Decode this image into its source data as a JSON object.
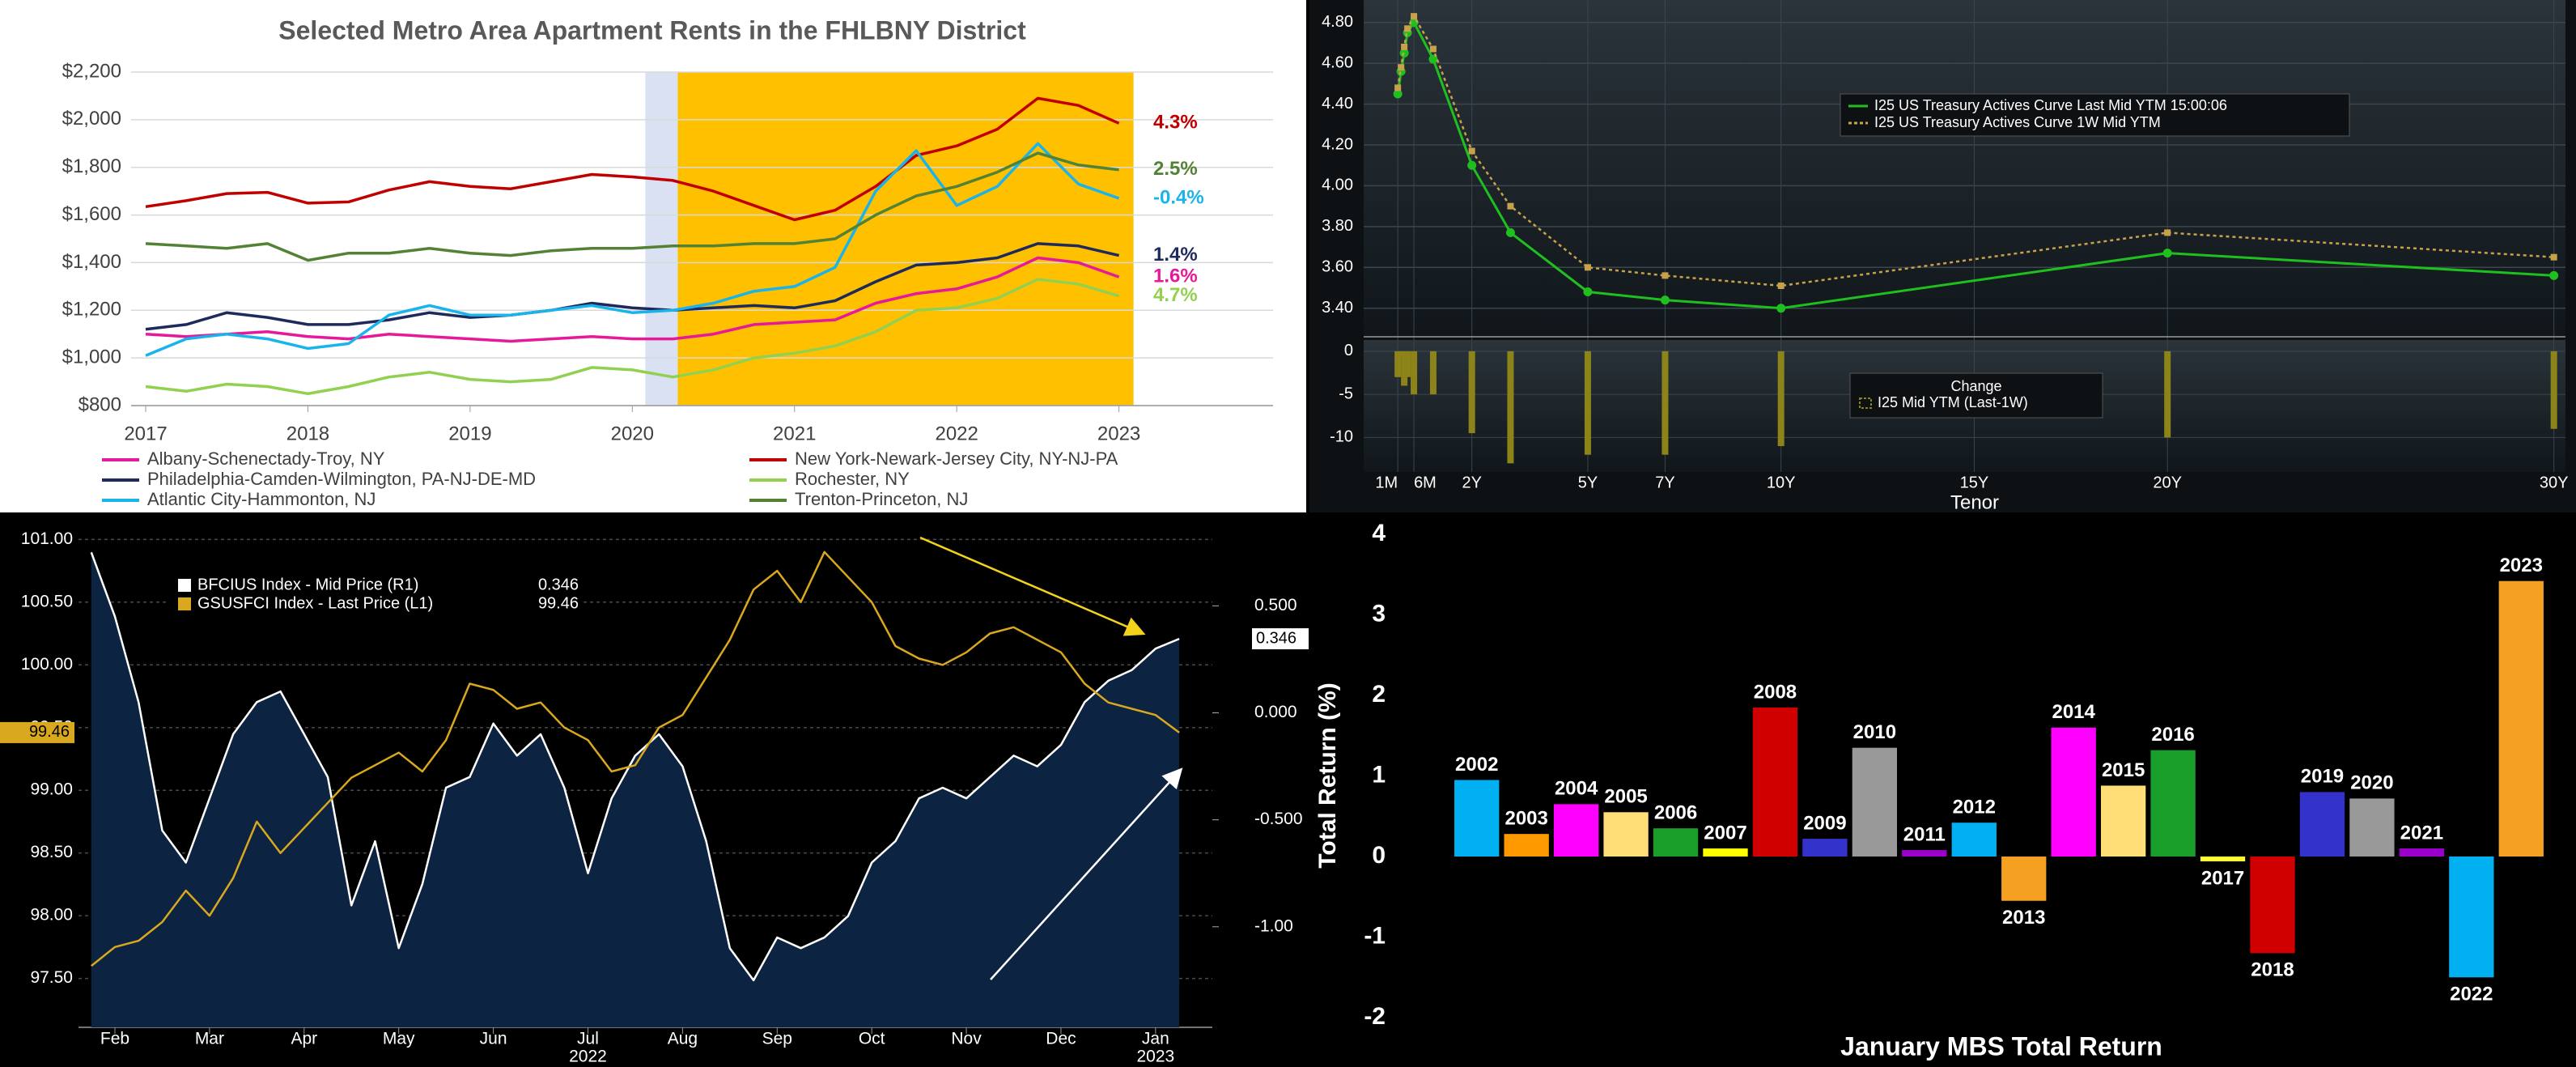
{
  "chart_data": [
    {
      "type": "line",
      "title": "Selected Metro Area Apartment Rents in the FHLBNY District",
      "x": [
        2017,
        2017.25,
        2017.5,
        2017.75,
        2018,
        2018.25,
        2018.5,
        2018.75,
        2019,
        2019.25,
        2019.5,
        2019.75,
        2020,
        2020.25,
        2020.5,
        2020.75,
        2021,
        2021.25,
        2021.5,
        2021.75,
        2022,
        2022.25,
        2022.5,
        2022.75,
        2023
      ],
      "xlim": [
        2016.91,
        2023.95
      ],
      "xticks": [
        2017,
        2018,
        2019,
        2020,
        2021,
        2022,
        2023
      ],
      "ylim": [
        800,
        2200
      ],
      "yticks": [
        {
          "value": 800,
          "label": "$800"
        },
        {
          "value": 1000,
          "label": "$1,000"
        },
        {
          "value": 1200,
          "label": "$1,200"
        },
        {
          "value": 1400,
          "label": "$1,400"
        },
        {
          "value": 1600,
          "label": "$1,600"
        },
        {
          "value": 1800,
          "label": "$1,800"
        },
        {
          "value": 2000,
          "label": "$2,000"
        },
        {
          "value": 2200,
          "label": "$2,200"
        }
      ],
      "grid": true,
      "shaded_regions": [
        {
          "x0": 2020.08,
          "x1": 2020.28,
          "color": "#d9e1f2"
        },
        {
          "x0": 2020.28,
          "x1": 2023.09,
          "color": "#ffc000"
        }
      ],
      "series": [
        {
          "name": "Albany-Schenectady-Troy, NY",
          "color": "#e6199b",
          "annotation": "1.6%",
          "values": [
            1100,
            1090,
            1100,
            1110,
            1090,
            1080,
            1100,
            1090,
            1080,
            1070,
            1080,
            1090,
            1080,
            1080,
            1100,
            1140,
            1150,
            1160,
            1230,
            1270,
            1290,
            1340,
            1420,
            1400,
            1340
          ]
        },
        {
          "name": "New York-Newark-Jersey City, NY-NJ-PA",
          "color": "#c00000",
          "annotation": "4.3%",
          "values": [
            1635,
            1660,
            1690,
            1695,
            1650,
            1655,
            1705,
            1740,
            1720,
            1710,
            1740,
            1770,
            1760,
            1745,
            1700,
            1640,
            1580,
            1620,
            1720,
            1850,
            1890,
            1960,
            2090,
            2060,
            1985
          ]
        },
        {
          "name": "Philadelphia-Camden-Wilmington, PA-NJ-DE-MD",
          "color": "#1f2a5c",
          "annotation": "1.4%",
          "values": [
            1120,
            1140,
            1190,
            1170,
            1140,
            1140,
            1160,
            1190,
            1170,
            1180,
            1200,
            1230,
            1210,
            1200,
            1210,
            1220,
            1210,
            1240,
            1320,
            1390,
            1400,
            1420,
            1480,
            1470,
            1430
          ]
        },
        {
          "name": "Rochester, NY",
          "color": "#92d050",
          "annotation": "4.7%",
          "values": [
            880,
            860,
            890,
            880,
            850,
            880,
            920,
            940,
            910,
            900,
            910,
            960,
            950,
            920,
            950,
            1000,
            1020,
            1050,
            1110,
            1200,
            1210,
            1250,
            1330,
            1310,
            1260
          ]
        },
        {
          "name": "Atlantic City-Hammonton, NJ",
          "color": "#19b4eb",
          "annotation": "-0.4%",
          "values": [
            1010,
            1080,
            1100,
            1080,
            1040,
            1060,
            1180,
            1220,
            1180,
            1180,
            1200,
            1220,
            1190,
            1200,
            1230,
            1280,
            1300,
            1380,
            1700,
            1870,
            1640,
            1720,
            1900,
            1730,
            1670
          ]
        },
        {
          "name": "Trenton-Princeton, NJ",
          "color": "#548235",
          "annotation": "2.5%",
          "values": [
            1480,
            1470,
            1460,
            1480,
            1410,
            1440,
            1440,
            1460,
            1440,
            1430,
            1450,
            1460,
            1460,
            1470,
            1470,
            1480,
            1480,
            1500,
            1600,
            1680,
            1720,
            1780,
            1860,
            1810,
            1790
          ]
        }
      ]
    },
    {
      "type": "line",
      "x": [
        0.083,
        0.167,
        0.25,
        0.333,
        0.5,
        1,
        2,
        3,
        5,
        7,
        10,
        20,
        30
      ],
      "xlim": [
        -0.8,
        30.3
      ],
      "xticks": [
        {
          "value": 0.083,
          "label": "1M"
        },
        {
          "value": 0.5,
          "label": "6M"
        },
        {
          "value": 2,
          "label": "2Y"
        },
        {
          "value": 5,
          "label": "5Y"
        },
        {
          "value": 7,
          "label": "7Y"
        },
        {
          "value": 10,
          "label": "10Y"
        },
        {
          "value": 15,
          "label": "15Y"
        },
        {
          "value": 20,
          "label": "20Y"
        },
        {
          "value": 30,
          "label": "30Y"
        }
      ],
      "xlabel": "Tenor",
      "ylim": [
        3.26,
        4.91
      ],
      "yticks": [
        {
          "value": 3.4,
          "label": "3.40"
        },
        {
          "value": 3.6,
          "label": "3.60"
        },
        {
          "value": 3.8,
          "label": "3.80"
        },
        {
          "value": 4,
          "label": "4.00"
        },
        {
          "value": 4.2,
          "label": "4.20"
        },
        {
          "value": 4.4,
          "label": "4.40"
        },
        {
          "value": 4.6,
          "label": "4.60"
        },
        {
          "value": 4.8,
          "label": "4.80"
        }
      ],
      "grid": true,
      "series": [
        {
          "name": "I25 US Treasury Actives Curve Last Mid YTM 15:00:06",
          "color": "#1fbf1f",
          "marker": "circle",
          "values": [
            4.45,
            4.56,
            4.65,
            4.75,
            4.8,
            4.62,
            4.1,
            3.77,
            3.48,
            3.44,
            3.4,
            3.67,
            3.56
          ]
        },
        {
          "name": "I25 US Treasury Actives Curve 1W Mid YTM",
          "color": "#c8a24a",
          "marker": "square",
          "dash": true,
          "values": [
            4.48,
            4.58,
            4.68,
            4.77,
            4.83,
            4.67,
            4.17,
            3.9,
            3.6,
            3.56,
            3.51,
            3.77,
            3.65
          ]
        }
      ],
      "change_panel": {
        "title": "Change",
        "ylim": [
          -14,
          1.3
        ],
        "yticks": [
          0,
          -5,
          -10
        ],
        "series": [
          {
            "name": "I25 Mid YTM (Last-1W)",
            "color": "#8c8418",
            "values": [
              -3,
              -0.5,
              -4,
              -3,
              -5,
              -5,
              -9.5,
              -13,
              -12,
              -12,
              -11,
              -10,
              -9
            ]
          }
        ]
      }
    },
    {
      "type": "line",
      "x": [
        2.25,
        2.5,
        2.75,
        3,
        3.25,
        3.5,
        3.75,
        4,
        4.25,
        4.5,
        4.75,
        5,
        5.25,
        5.5,
        5.75,
        6,
        6.25,
        6.5,
        6.75,
        7,
        7.25,
        7.5,
        7.75,
        8,
        8.25,
        8.5,
        8.75,
        9,
        9.25,
        9.5,
        9.75,
        10,
        10.25,
        10.5,
        10.75,
        11,
        11.25,
        11.5,
        11.75,
        12,
        12.25,
        12.5,
        12.75,
        13,
        13.25,
        13.5,
        13.75
      ],
      "xlim": [
        2.115,
        14.1
      ],
      "xticks": [
        {
          "value": 2.5,
          "label": "Feb"
        },
        {
          "value": 3.5,
          "label": "Mar"
        },
        {
          "value": 4.5,
          "label": "Apr"
        },
        {
          "value": 5.5,
          "label": "May"
        },
        {
          "value": 6.5,
          "label": "Jun"
        },
        {
          "value": 7.5,
          "label": "Jul"
        },
        {
          "value": 8.5,
          "label": "Aug"
        },
        {
          "value": 9.5,
          "label": "Sep"
        },
        {
          "value": 10.5,
          "label": "Oct"
        },
        {
          "value": 11.5,
          "label": "Nov"
        },
        {
          "value": 12.5,
          "label": "Dec"
        },
        {
          "value": 13.5,
          "label": "Jan"
        }
      ],
      "year_labels": [
        {
          "value": 7.5,
          "label": "2022"
        },
        {
          "value": 13.5,
          "label": "2023"
        }
      ],
      "ylim": [
        97.11,
        101.17
      ],
      "yticks": [
        {
          "value": 97.5,
          "label": "97.50"
        },
        {
          "value": 98,
          "label": "98.00"
        },
        {
          "value": 98.5,
          "label": "98.50"
        },
        {
          "value": 99,
          "label": "99.00"
        },
        {
          "value": 99.5,
          "label": "99.50"
        },
        {
          "value": 100,
          "label": "100.00"
        },
        {
          "value": 100.5,
          "label": "100.50"
        },
        {
          "value": 101,
          "label": "101.00"
        }
      ],
      "y2lim": [
        -1.47,
        0.91
      ],
      "y2ticks": [
        {
          "value": -1,
          "label": "-1.00"
        },
        {
          "value": -0.5,
          "label": "-0.500"
        },
        {
          "value": 0,
          "label": "0.000"
        },
        {
          "value": 0.5,
          "label": "0.500"
        }
      ],
      "grid": true,
      "series": [
        {
          "name": "BFCIUS Index - Mid Price (R1)",
          "color": "#ffffff",
          "fill": "#0c2341",
          "axis": "y2",
          "last_label": "0.346",
          "values": [
            0.75,
            0.45,
            0.05,
            -0.55,
            -0.7,
            -0.4,
            -0.1,
            0.05,
            0.1,
            -0.1,
            -0.3,
            -0.9,
            -0.6,
            -1.1,
            -0.8,
            -0.35,
            -0.3,
            -0.05,
            -0.2,
            -0.1,
            -0.35,
            -0.75,
            -0.4,
            -0.2,
            -0.1,
            -0.25,
            -0.6,
            -1.1,
            -1.25,
            -1.05,
            -1.1,
            -1.05,
            -0.95,
            -0.7,
            -0.6,
            -0.4,
            -0.35,
            -0.4,
            -0.3,
            -0.2,
            -0.25,
            -0.15,
            0.05,
            0.15,
            0.2,
            0.3,
            0.346
          ]
        },
        {
          "name": "GSUSFCI Index - Last Price (L1)",
          "color": "#d9a81e",
          "last_label": "99.46",
          "values": [
            97.6,
            97.75,
            97.8,
            97.95,
            98.2,
            98.0,
            98.3,
            98.75,
            98.5,
            98.7,
            98.9,
            99.1,
            99.2,
            99.3,
            99.15,
            99.4,
            99.85,
            99.8,
            99.65,
            99.7,
            99.5,
            99.4,
            99.15,
            99.2,
            99.5,
            99.6,
            99.9,
            100.2,
            100.6,
            100.75,
            100.5,
            100.9,
            100.7,
            100.5,
            100.15,
            100.05,
            100.0,
            100.1,
            100.25,
            100.3,
            100.2,
            100.1,
            99.85,
            99.7,
            99.65,
            99.6,
            99.46
          ]
        }
      ]
    },
    {
      "type": "bar",
      "title": "January MBS Total Return",
      "ylabel": "Total Return (%)",
      "categories": [
        "2002",
        "2003",
        "2004",
        "2005",
        "2006",
        "2007",
        "2008",
        "2009",
        "2010",
        "2011",
        "2012",
        "2013",
        "2014",
        "2015",
        "2016",
        "2017",
        "2018",
        "2019",
        "2020",
        "2021",
        "2022",
        "2023"
      ],
      "values": [
        0.95,
        0.28,
        0.65,
        0.55,
        0.35,
        0.1,
        1.85,
        0.22,
        1.35,
        0.08,
        0.42,
        -0.55,
        1.6,
        0.88,
        1.32,
        -0.06,
        -1.2,
        0.8,
        0.72,
        0.1,
        -1.5,
        3.42
      ],
      "colors": [
        "#00b0f0",
        "#ff9900",
        "#ff00ff",
        "#ffdd77",
        "#1a9e2a",
        "#ffff00",
        "#d00000",
        "#3333cc",
        "#999999",
        "#9900cc",
        "#00b0f0",
        "#f5a020",
        "#ff00ff",
        "#ffdd77",
        "#1a9e2a",
        "#ffff33",
        "#d00000",
        "#3333cc",
        "#999999",
        "#9900cc",
        "#00b0f0",
        "#f5a020"
      ],
      "ylim": [
        -2,
        4
      ],
      "yticks": [
        -2,
        -1,
        0,
        1,
        2,
        3,
        4
      ]
    }
  ]
}
